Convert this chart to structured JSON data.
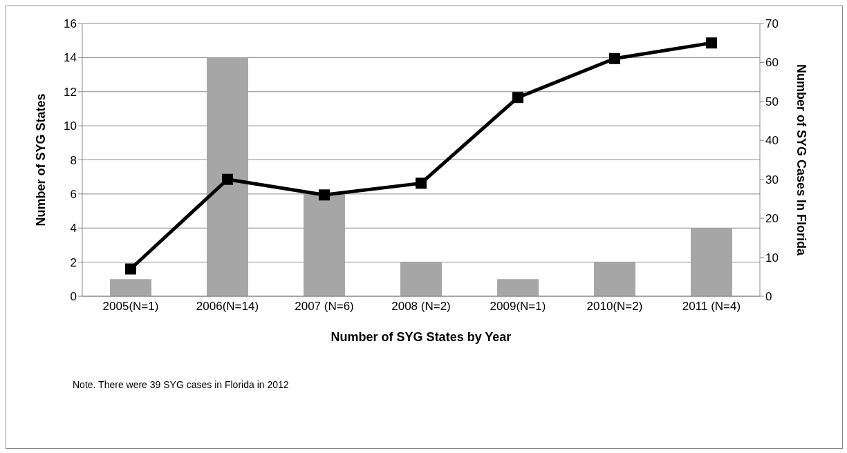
{
  "chart_data": {
    "type": "bar",
    "categories": [
      "2005(N=1)",
      "2006(N=14)",
      "2007 (N=6)",
      "2008 (N=2)",
      "2009(N=1)",
      "2010(N=2)",
      "2011 (N=4)"
    ],
    "series": [
      {
        "color": "#a6a6a6",
        "values": [
          1,
          14,
          6,
          2,
          1,
          2,
          4
        ]
      },
      {
        "type": "line",
        "axis": "y2",
        "color": "#000000",
        "values": [
          7,
          30,
          26,
          29,
          51,
          61,
          65
        ]
      }
    ],
    "xlabel": "Number of SYG States by Year",
    "ylabel": "Number of SYG States",
    "y2label": "Number of SYG Cases In Florida",
    "ylim": [
      0,
      16
    ],
    "yticks": [
      0,
      2,
      4,
      6,
      8,
      10,
      12,
      14,
      16
    ],
    "y2lim": [
      0,
      70
    ],
    "y2ticks": [
      0,
      10,
      20,
      30,
      40,
      50,
      60,
      70
    ],
    "grid": "y",
    "legend": false,
    "marker": "square",
    "line_style": "solid",
    "annotations": [
      "Note. There were 39 SYG cases in Florida in 2012"
    ]
  }
}
